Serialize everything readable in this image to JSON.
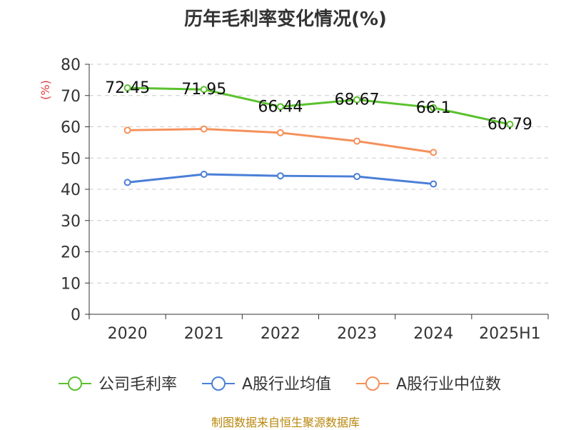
{
  "chart_data": {
    "type": "line",
    "title": "历年毛利率变化情况(%)",
    "ylabel": "(%)",
    "categories": [
      "2020",
      "2021",
      "2022",
      "2023",
      "2024",
      "2025H1"
    ],
    "ylim": [
      0,
      80
    ],
    "yticks": [
      "0",
      "10",
      "20",
      "30",
      "40",
      "50",
      "60",
      "70",
      "80"
    ],
    "grid": true,
    "legend_position": "bottom",
    "series": [
      {
        "name": "公司毛利率",
        "color": "#5ac12e",
        "values": [
          72.45,
          71.95,
          66.44,
          68.67,
          66.1,
          60.79
        ],
        "labels": [
          "72.45",
          "71.95",
          "66.44",
          "68.67",
          "66.1",
          "60.79"
        ]
      },
      {
        "name": "A股行业均值",
        "color": "#4a7fd8",
        "values": [
          42.2,
          44.8,
          44.3,
          44.1,
          41.7,
          null
        ]
      },
      {
        "name": "A股行业中位数",
        "color": "#f5905a",
        "values": [
          58.9,
          59.3,
          58.1,
          55.4,
          51.8,
          null
        ]
      }
    ]
  },
  "source": "制图数据来自恒生聚源数据库"
}
